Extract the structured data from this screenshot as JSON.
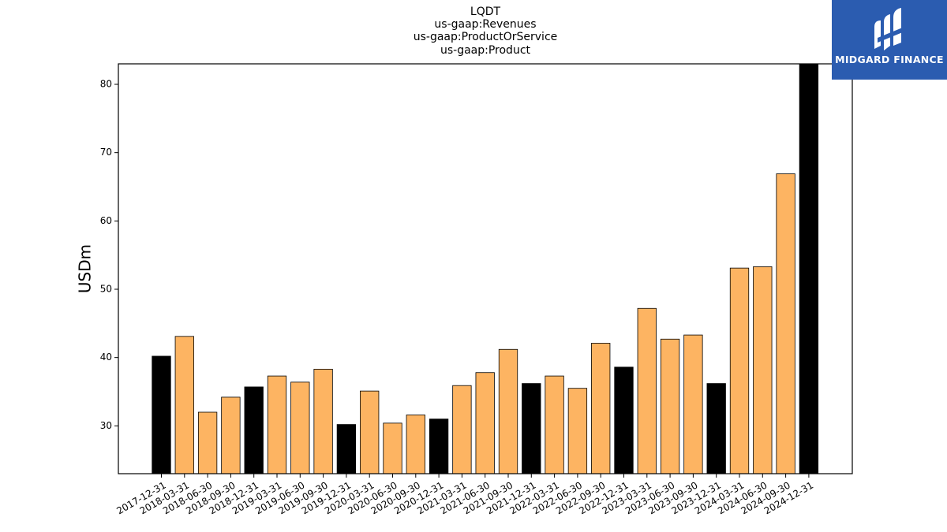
{
  "header": {
    "title_lines": [
      "LQDT",
      "us-gaap:Revenues",
      "us-gaap:ProductOrService",
      "us-gaap:Product"
    ]
  },
  "logo": {
    "text": "MIDGARD FINANCE",
    "icon": "midgard-logo-icon",
    "background": "#2b5cb0"
  },
  "chart_data": {
    "type": "bar",
    "ylabel": "USDm",
    "xlabel": "",
    "ylim": [
      23,
      83
    ],
    "yticks": [
      30,
      40,
      50,
      60,
      70,
      80
    ],
    "grid": false,
    "colors": {
      "annual": "#000000",
      "quarterly": "#fdb462"
    },
    "categories": [
      "2017-12-31",
      "2018-03-31",
      "2018-06-30",
      "2018-09-30",
      "2018-12-31",
      "2019-03-31",
      "2019-06-30",
      "2019-09-30",
      "2019-12-31",
      "2020-03-31",
      "2020-06-30",
      "2020-09-30",
      "2020-12-31",
      "2021-03-31",
      "2021-06-30",
      "2021-09-30",
      "2021-12-31",
      "2022-03-31",
      "2022-06-30",
      "2022-09-30",
      "2022-12-31",
      "2023-03-31",
      "2023-06-30",
      "2023-09-30",
      "2023-12-31",
      "2024-03-31",
      "2024-06-30",
      "2024-09-30",
      "2024-12-31"
    ],
    "values": [
      40.2,
      43.1,
      32.0,
      34.2,
      35.7,
      37.3,
      36.4,
      38.3,
      30.2,
      35.1,
      30.4,
      31.6,
      31.0,
      35.9,
      37.8,
      41.2,
      36.2,
      37.3,
      35.5,
      42.1,
      38.6,
      47.2,
      42.7,
      43.3,
      36.2,
      53.1,
      53.3,
      66.9,
      83.0
    ],
    "is_annual": [
      true,
      false,
      false,
      false,
      true,
      false,
      false,
      false,
      true,
      false,
      false,
      false,
      true,
      false,
      false,
      false,
      true,
      false,
      false,
      false,
      true,
      false,
      false,
      false,
      true,
      false,
      false,
      false,
      true
    ]
  }
}
